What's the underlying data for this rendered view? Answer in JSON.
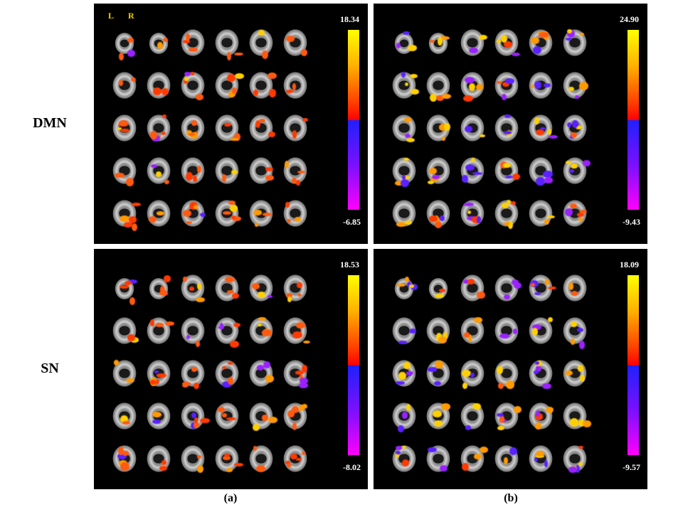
{
  "row_labels": {
    "top": "DMN",
    "bottom": "SN"
  },
  "orientation": {
    "left": "L",
    "right": "R"
  },
  "panels": [
    {
      "id": "dmn-a",
      "max": "18.34",
      "min": "-6.85"
    },
    {
      "id": "dmn-b",
      "max": "24.90",
      "min": "-9.43"
    },
    {
      "id": "sn-a",
      "max": "18.53",
      "min": "-8.02"
    },
    {
      "id": "sn-b",
      "max": "18.09",
      "min": "-9.57"
    }
  ],
  "captions": {
    "a": "(a)",
    "b": "(b)"
  },
  "colors": {
    "positive": [
      "#ff0000",
      "#ffff00"
    ],
    "negative": [
      "#2020ff",
      "#ff00ff"
    ]
  }
}
